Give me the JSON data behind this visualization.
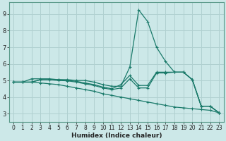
{
  "xlabel": "Humidex (Indice chaleur)",
  "bg_color": "#cce8e8",
  "grid_color": "#b0d0d0",
  "line_color": "#1a7a6a",
  "xlim": [
    -0.5,
    23.5
  ],
  "ylim": [
    2.5,
    9.7
  ],
  "xticks": [
    0,
    1,
    2,
    3,
    4,
    5,
    6,
    7,
    8,
    9,
    10,
    11,
    12,
    13,
    14,
    15,
    16,
    17,
    18,
    19,
    20,
    21,
    22,
    23
  ],
  "yticks": [
    3,
    4,
    5,
    6,
    7,
    8,
    9
  ],
  "lines": [
    [
      4.9,
      4.9,
      4.9,
      5.05,
      5.05,
      5.05,
      5.05,
      5.0,
      5.0,
      4.9,
      4.75,
      4.65,
      4.65,
      5.8,
      9.25,
      8.55,
      7.0,
      6.15,
      5.5,
      5.5,
      5.05,
      3.45,
      3.45,
      3.05
    ],
    [
      4.9,
      4.9,
      5.1,
      5.1,
      5.1,
      5.05,
      5.0,
      4.95,
      4.85,
      4.75,
      4.6,
      4.5,
      4.75,
      5.3,
      4.7,
      4.7,
      5.5,
      5.5,
      5.5,
      5.5,
      5.05,
      3.45,
      3.45,
      3.05
    ],
    [
      4.9,
      4.9,
      4.9,
      5.05,
      5.05,
      5.0,
      4.98,
      4.9,
      4.8,
      4.7,
      4.55,
      4.45,
      4.55,
      5.1,
      4.55,
      4.55,
      5.45,
      5.45,
      5.5,
      5.5,
      5.05,
      3.45,
      3.45,
      3.05
    ],
    [
      4.9,
      4.9,
      4.9,
      4.85,
      4.8,
      4.75,
      4.65,
      4.55,
      4.45,
      4.35,
      4.2,
      4.1,
      4.0,
      3.9,
      3.8,
      3.7,
      3.6,
      3.5,
      3.4,
      3.35,
      3.3,
      3.25,
      3.2,
      3.05
    ]
  ]
}
